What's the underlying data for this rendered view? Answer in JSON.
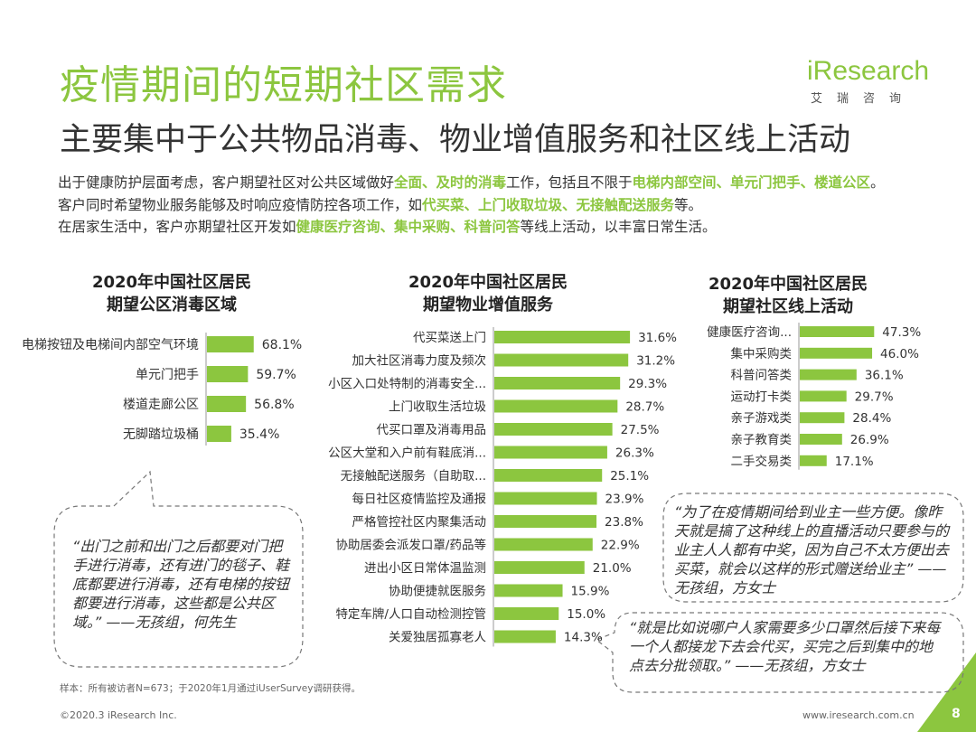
{
  "header": {
    "title": "疫情期间的短期社区需求",
    "subtitle": "主要集中于公共物品消毒、物业增值服务和社区线上活动"
  },
  "logo": {
    "brand": "iResearch",
    "chinese": "艾瑞咨询"
  },
  "intro": {
    "line1_a": "出于健康防护层面考虑，客户期望社区对公共区域做好",
    "line1_hl1": "全面、及时的消毒",
    "line1_b": "工作，包括且不限于",
    "line1_hl2": "电梯内部空间、单元门把手、楼道公区",
    "line1_c": "。",
    "line2_a": "客户同时希望物业服务能够及时响应疫情防控各项工作，如",
    "line2_hl1": "代买菜、上门收取垃圾、无接触配送服务",
    "line2_b": "等。",
    "line3_a": "在居家生活中，客户亦期望社区开发如",
    "line3_hl1": "健康医疗咨询、集中采购、科普问答",
    "line3_b": "等线上活动，以丰富日常生活。"
  },
  "chart_data": [
    {
      "type": "bar",
      "orientation": "horizontal",
      "title": "2020年中国社区居民期望公区消毒区域",
      "title_line1": "2020年中国社区居民",
      "title_line2": "期望公区消毒区域",
      "categories": [
        "电梯按钮及电梯间内部空气环境",
        "单元门把手",
        "楼道走廊公区",
        "无脚踏垃圾桶"
      ],
      "values": [
        68.1,
        59.7,
        56.8,
        35.4
      ],
      "labels": [
        "68.1%",
        "59.7%",
        "56.8%",
        "35.4%"
      ],
      "unit": "%",
      "color": "#8cc63f"
    },
    {
      "type": "bar",
      "orientation": "horizontal",
      "title": "2020年中国社区居民期望物业增值服务",
      "title_line1": "2020年中国社区居民",
      "title_line2": "期望物业增值服务",
      "categories": [
        "代买菜送上门",
        "加大社区消毒力度及频次",
        "小区入口处特制的消毒安全...",
        "上门收取生活垃圾",
        "代买口罩及消毒用品",
        "公区大堂和入户前有鞋底消...",
        "无接触配送服务（自助取...",
        "每日社区疫情监控及通报",
        "严格管控社区内聚集活动",
        "协助居委会派发口罩/药品等",
        "进出小区日常体温监测",
        "协助便捷就医服务",
        "特定车牌/人口自动检测控管",
        "关爱独居孤寡老人"
      ],
      "values": [
        31.6,
        31.2,
        29.3,
        28.7,
        27.5,
        26.3,
        25.1,
        23.9,
        23.8,
        22.9,
        21.0,
        15.9,
        15.0,
        14.3
      ],
      "labels": [
        "31.6%",
        "31.2%",
        "29.3%",
        "28.7%",
        "27.5%",
        "26.3%",
        "25.1%",
        "23.9%",
        "23.8%",
        "22.9%",
        "21.0%",
        "15.9%",
        "15.0%",
        "14.3%"
      ],
      "unit": "%",
      "color": "#8cc63f"
    },
    {
      "type": "bar",
      "orientation": "horizontal",
      "title": "2020年中国社区居民期望社区线上活动",
      "title_line1": "2020年中国社区居民",
      "title_line2": "期望社区线上活动",
      "categories": [
        "健康医疗咨询...",
        "集中采购类",
        "科普问答类",
        "运动打卡类",
        "亲子游戏类",
        "亲子教育类",
        "二手交易类"
      ],
      "values": [
        47.3,
        46.0,
        36.1,
        29.7,
        28.4,
        26.9,
        17.1
      ],
      "labels": [
        "47.3%",
        "46.0%",
        "36.1%",
        "29.7%",
        "28.4%",
        "26.9%",
        "17.1%"
      ],
      "unit": "%",
      "color": "#8cc63f"
    }
  ],
  "quotes": {
    "q1": "“出门之前和出门之后都要对门把手进行消毒，还有进门的毯子、鞋底都要进行消毒，还有电梯的按钮都要进行消毒，这些都是公共区域。” ——无孩组，何先生",
    "q2": "“为了在疫情期间给到业主一些方便。像昨天就是搞了这种线上的直播活动只要参与的业主人人都有中奖，因为自己不太方便出去买菜，就会以这样的形式赠送给业主” ——无孩组，方女士",
    "q3": "“就是比如说哪户人家需要多少口罩然后接下来每一个人都接龙下去会代买，买完之后到集中的地点去分批领取。” ——无孩组，方女士"
  },
  "footer": {
    "note": "样本：所有被访者N=673；于2020年1月通过iUserSurvey调研获得。",
    "copyright": "©2020.3 iResearch Inc.",
    "website": "www.iresearch.com.cn",
    "page": "8"
  }
}
